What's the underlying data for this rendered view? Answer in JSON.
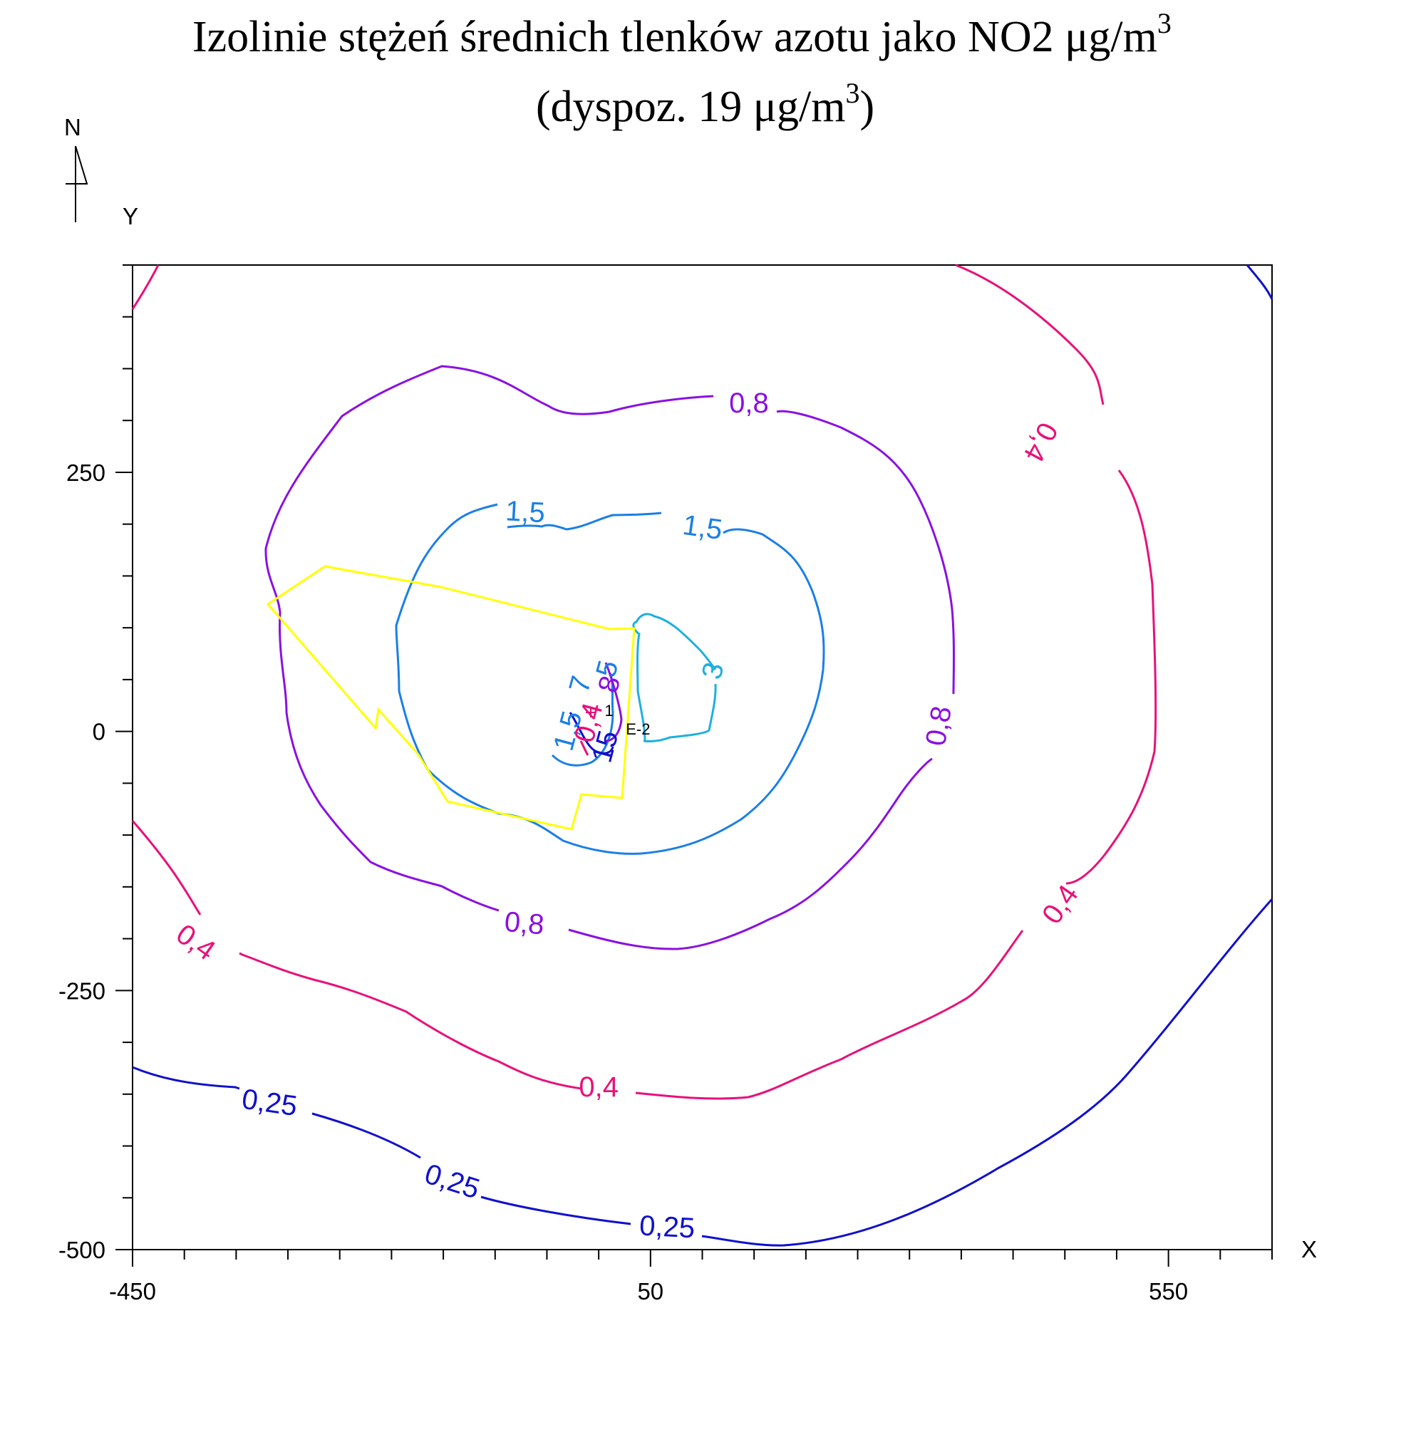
{
  "title": {
    "line1": "Izolinie stężeń średnich tlenków azotu jako NO2 μg/m",
    "line1_sup": "3",
    "line2_start": "(dyspoz. 19 μg/m",
    "line2_sup": "3",
    "line2_end": ")"
  },
  "north_label": "N",
  "chart_data": {
    "type": "contour",
    "xlabel": "X",
    "ylabel": "Y",
    "xlim": [
      -450,
      650
    ],
    "ylim": [
      -500,
      450
    ],
    "x_ticks": [
      -450,
      50,
      550
    ],
    "y_ticks": [
      250,
      0,
      -250,
      -500
    ],
    "minor_tick_step": 50,
    "colors": {
      "c0_25": "#1010cc",
      "c0_4": "#e8107a",
      "c0_8": "#8a10e0",
      "c1_5": "#1a7fe6",
      "c3": "#1cb0e0",
      "boundary": "#ffff00"
    },
    "contour_labels": [
      {
        "text": "0,25",
        "x": -318,
        "y": -360,
        "color": "#1010cc",
        "angle": 8
      },
      {
        "text": "0,25",
        "x": -142,
        "y": -436,
        "color": "#1010cc",
        "angle": 18
      },
      {
        "text": "0,25",
        "x": 66,
        "y": -480,
        "color": "#1010cc",
        "angle": 3
      },
      {
        "text": "0,4",
        "x": -390,
        "y": -205,
        "color": "#e8107a",
        "angle": 35
      },
      {
        "text": "0,4",
        "x": 0,
        "y": -345,
        "color": "#e8107a",
        "angle": 0
      },
      {
        "text": "0,4",
        "x": 447,
        "y": -168,
        "color": "#e8107a",
        "angle": -55
      },
      {
        "text": "0,4",
        "x": 425,
        "y": 280,
        "color": "#e8107a",
        "angle": 118
      },
      {
        "text": "0,8",
        "x": -72,
        "y": -187,
        "color": "#8a10e0",
        "angle": 5
      },
      {
        "text": "0,8",
        "x": 145,
        "y": 315,
        "color": "#8a10e0",
        "angle": 0
      },
      {
        "text": "0,8",
        "x": 330,
        "y": 5,
        "color": "#8a10e0",
        "angle": -80
      },
      {
        "text": "1,5",
        "x": -71,
        "y": 210,
        "color": "#1a7fe6",
        "angle": 3
      },
      {
        "text": "1,5",
        "x": 100,
        "y": 195,
        "color": "#1a7fe6",
        "angle": 8
      },
      {
        "text": "1,5",
        "x": -28,
        "y": 0,
        "color": "#1a7fe6",
        "angle": -75
      },
      {
        "text": "3",
        "x": 112,
        "y": 58,
        "color": "#1cb0e0",
        "angle": -75
      },
      {
        "text": "7",
        "x": -16,
        "y": 45,
        "color": "#1a7fe6",
        "angle": -75
      },
      {
        "text": "5",
        "x": 10,
        "y": 60,
        "color": "#1a7fe6",
        "angle": -75
      },
      {
        "text": "8",
        "x": 12,
        "y": 45,
        "color": "#8a10e0",
        "angle": -75
      },
      {
        "text": "0,4",
        "x": -8,
        "y": 8,
        "color": "#e8107a",
        "angle": -75
      },
      {
        "text": "15",
        "x": 8,
        "y": -15,
        "color": "#1010cc",
        "angle": -75
      }
    ],
    "small_labels": [
      {
        "text": "E-2",
        "x": 38,
        "y": -3
      },
      {
        "text": "1",
        "x": 10,
        "y": 15
      }
    ]
  }
}
